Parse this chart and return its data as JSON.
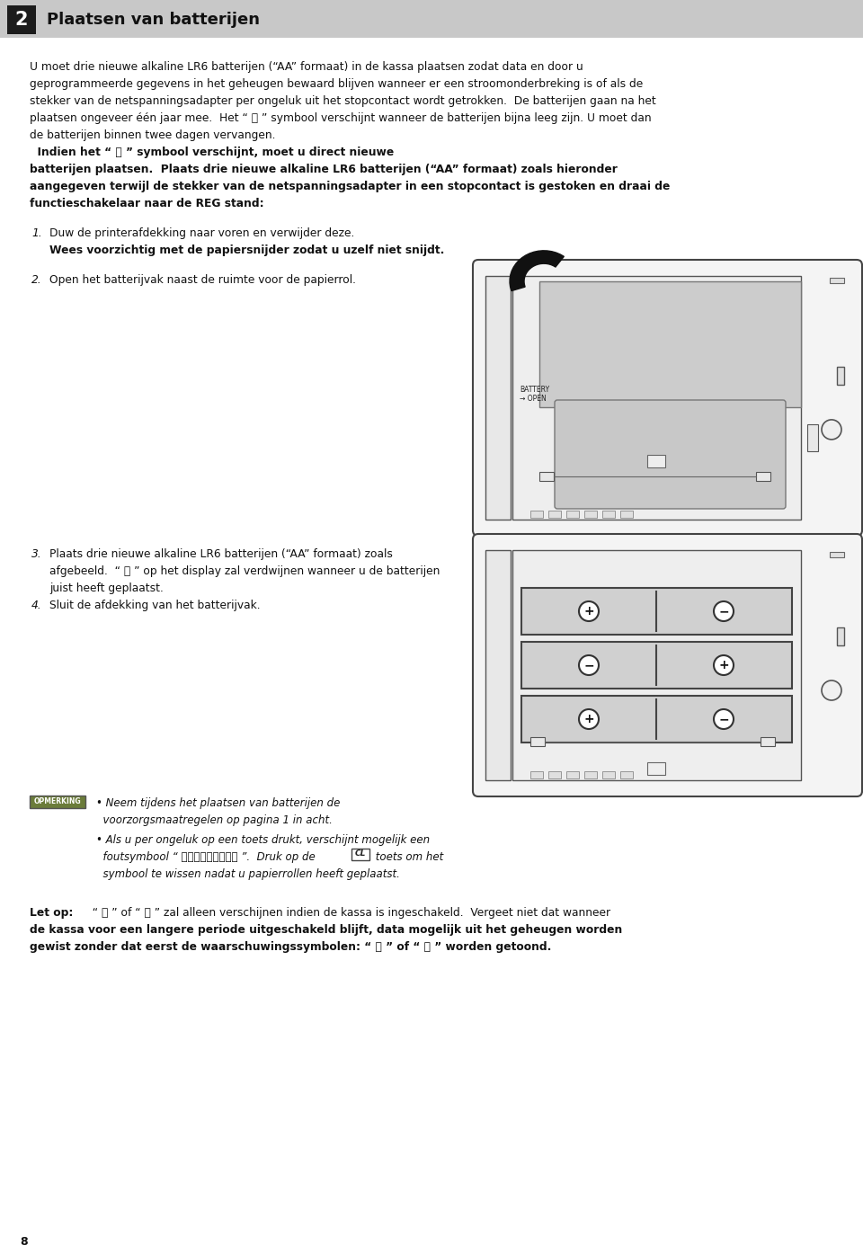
{
  "bg_color": "#ffffff",
  "header_bg": "#c8c8c8",
  "header_num": "2",
  "header_title": "Plaatsen van batterijen",
  "page_num": "8",
  "para_normal_lines": [
    "U moet drie nieuwe alkaline LR6 batterijen (“AA” formaat) in de kassa plaatsen zodat data en door u",
    "geprogrammeerde gegevens in het geheugen bewaard blijven wanneer er een stroomonderbreking is of als de",
    "stekker van de netspanningsadapter per ongeluk uit het stopcontact wordt getrokken.  De batterijen gaan na het",
    "plaatsen ongeveer één jaar mee.  Het “ ⎾ ” symbool verschijnt wanneer de batterijen bijna leeg zijn. U moet dan",
    "de batterijen binnen twee dagen vervangen."
  ],
  "para_bold_lines": [
    "  Indien het “ ⎾ ” symbool verschijnt, moet u direct nieuwe",
    "batterijen plaatsen.  Plaats drie nieuwe alkaline LR6 batterijen (“AA” formaat) zoals hieronder",
    "aangegeven terwijl de stekker van de netspanningsadapter in een stopcontact is gestoken en draai de",
    "functieschakelaar naar de REG stand:"
  ],
  "step1_num": "1.",
  "step1_normal": "Duw de printerafdekking naar voren en verwijder deze.",
  "step1_bold": "Wees voorzichtig met de papiersnijder zodat u uzelf niet snijdt.",
  "step2_num": "2.",
  "step2_text": "Open het batterijvak naast de ruimte voor de papierrol.",
  "step3_num": "3.",
  "step3_lines": [
    "Plaats drie nieuwe alkaline LR6 batterijen (“AA” formaat) zoals",
    "afgebeeld.  “ ⎾ ” op het display zal verdwijnen wanneer u de batterijen",
    "juist heeft geplaatst."
  ],
  "step4_num": "4.",
  "step4_text": "Sluit de afdekking van het batterijvak.",
  "note_label": "OPMERKING",
  "note1_line1": "• Neem tijdens het plaatsen van batterijen de",
  "note1_line2": "  voorzorgsmaatregelen op pagina 1 in acht.",
  "note2_line1": "• Als u per ongeluk op een toets drukt, verschijnt mogelijk een",
  "note2_line2": "  foutsymbool “ ＰＰＰＰＰＰＰＰＰ ”.  Druk op de",
  "note2_cl": "CL",
  "note2_end": " toets om het",
  "note2_line3": "  symbool te wissen nadat u papierrollen heeft geplaatst.",
  "letop_label": "Let op:",
  "letop_normal": "  “ ⎾ ” of “ ⎾ ” zal alleen verschijnen indien de kassa is ingeschakeld.  Vergeet niet dat wanneer",
  "letop_bold2": "de kassa voor een langere periode uitgeschakeld blijft, data mogelijk uit het geheugen worden",
  "letop_bold3": "gewist zonder dat eerst de waarschuwingssymbolen: “ ⎾ ” of “ ⎾ ” worden getoond."
}
